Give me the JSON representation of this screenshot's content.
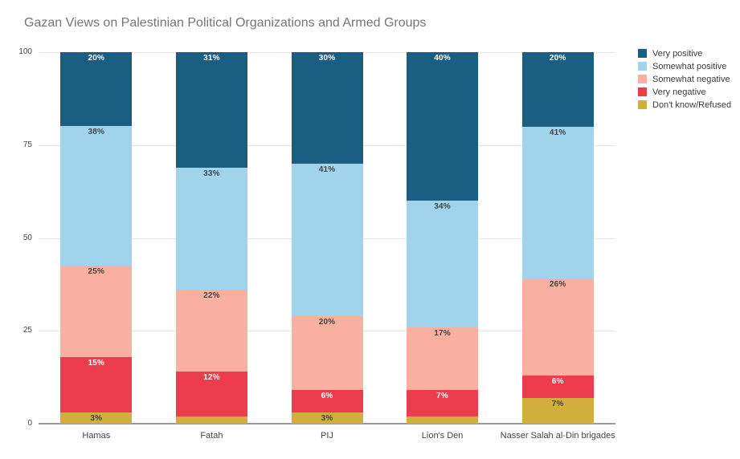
{
  "chart_data": {
    "type": "bar",
    "stacked": true,
    "title": "Gazan Views on Palestinian Political Organizations and Armed Groups",
    "categories": [
      "Hamas",
      "Fatah",
      "PIJ",
      "Lion's Den",
      "Nasser Salah al-Din brigades"
    ],
    "series": [
      {
        "name": "Very positive",
        "color": "#1a5e82",
        "label_color": "#ffffff",
        "values": [
          20,
          31,
          30,
          40,
          20
        ],
        "labels": [
          "20%",
          "31%",
          "30%",
          "40%",
          "20%"
        ]
      },
      {
        "name": "Somewhat positive",
        "color": "#9fd4ec",
        "label_color": "#434343",
        "values": [
          38,
          33,
          41,
          34,
          41
        ],
        "labels": [
          "38%",
          "33%",
          "41%",
          "34%",
          "41%"
        ]
      },
      {
        "name": "Somewhat negative",
        "color": "#fab0a0",
        "label_color": "#434343",
        "values": [
          25,
          22,
          20,
          17,
          26
        ],
        "labels": [
          "25%",
          "22%",
          "20%",
          "17%",
          "26%"
        ]
      },
      {
        "name": "Very negative",
        "color": "#ed3c4e",
        "label_color": "#ffffff",
        "values": [
          15,
          12,
          6,
          7,
          6
        ],
        "labels": [
          "15%",
          "12%",
          "6%",
          "7%",
          "6%"
        ]
      },
      {
        "name": "Don't know/Refused",
        "color": "#d2ae3d",
        "label_color": "#434343",
        "values": [
          3,
          2,
          3,
          2,
          7
        ],
        "labels": [
          "3%",
          null,
          "3%",
          null,
          "7%"
        ]
      }
    ],
    "ylim": [
      0,
      100
    ],
    "yticks": [
      0,
      25,
      50,
      75,
      100
    ],
    "grid": true,
    "legend_position": "right",
    "colors": {
      "title": "#757575",
      "grid": "#e6e6e6",
      "axis_line": "#9c9c9c",
      "tick_label": "#444444"
    }
  }
}
